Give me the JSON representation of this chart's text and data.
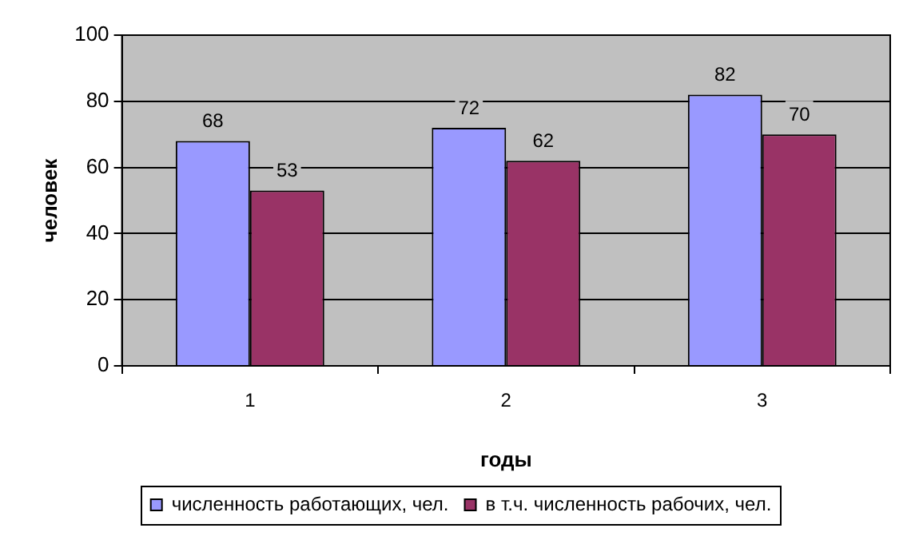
{
  "chart_data": {
    "type": "bar",
    "xlabel": "годы",
    "ylabel": "человек",
    "categories": [
      "1",
      "2",
      "3"
    ],
    "series": [
      {
        "name": "численность работающих, чел.",
        "color": "#9999ff",
        "values": [
          68,
          72,
          82
        ]
      },
      {
        "name": "в т.ч. численность рабочих, чел.",
        "color": "#993366",
        "values": [
          53,
          62,
          70
        ]
      }
    ],
    "ylim": [
      0,
      100
    ],
    "yticks": [
      0,
      20,
      40,
      60,
      80,
      100
    ],
    "grid": "y",
    "legend": "bottom",
    "data_labels": true
  }
}
